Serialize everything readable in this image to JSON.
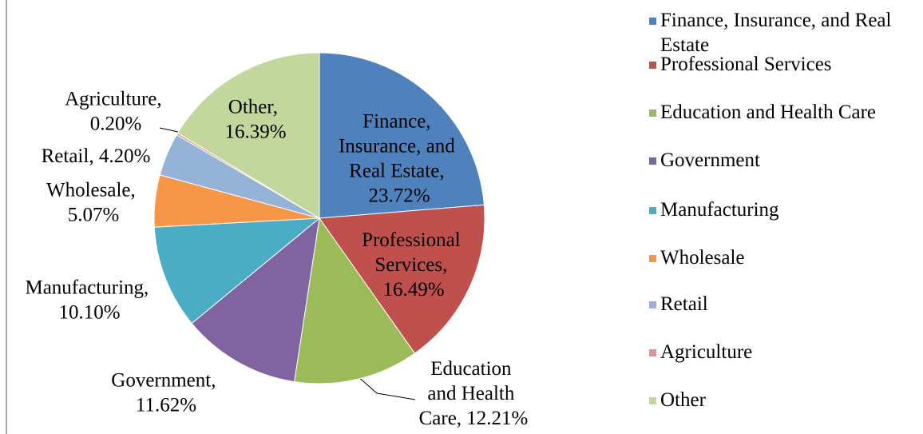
{
  "chart_data": {
    "type": "pie",
    "categories": [
      "Finance, Insurance, and Real Estate",
      "Professional Services",
      "Education and Health Care",
      "Government",
      "Manufacturing",
      "Wholesale",
      "Retail",
      "Agriculture",
      "Other"
    ],
    "values": [
      23.72,
      16.49,
      12.21,
      11.62,
      10.1,
      5.07,
      4.2,
      0.2,
      16.39
    ],
    "value_labels": [
      "Finance, Insurance, and Real Estate, 23.72%",
      "Professional Services, 16.49%",
      "Education and Health Care, 12.21%",
      "Government, 11.62%",
      "Manufacturing, 10.10%",
      "Wholesale, 5.07%",
      "Retail, 4.20%",
      "Agriculture, 0.20%",
      "Other, 16.39%"
    ],
    "colors": [
      "#4f81bd",
      "#c0504d",
      "#9bbb59",
      "#8064a2",
      "#4bacc6",
      "#f79646",
      "#95b3d7",
      "#d99694",
      "#c3d69b"
    ],
    "legend": "right"
  }
}
